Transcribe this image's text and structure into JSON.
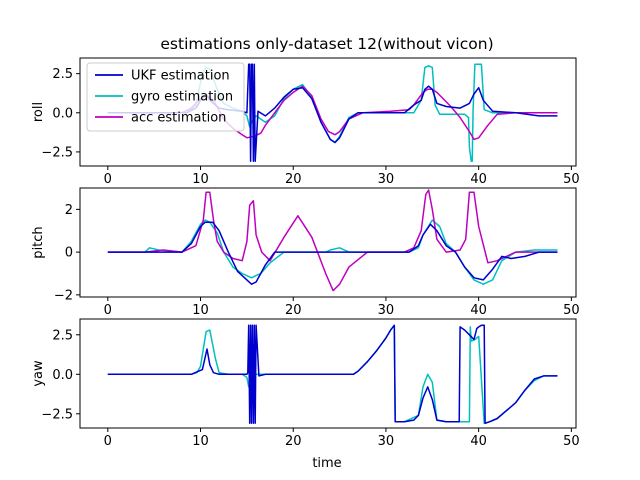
{
  "title": "estimations only-dataset 12(without vicon)",
  "xlabel": "time",
  "chart_data": {
    "type": "line",
    "title": "estimations only-dataset 12(without vicon)",
    "xlabel": "time",
    "legend": {
      "placement": "top-left",
      "entries": [
        "UKF estimation",
        "gyro estimation",
        "acc estimation"
      ]
    },
    "colors": {
      "UKF estimation": "#0000cc",
      "gyro estimation": "#00bfbf",
      "acc estimation": "#bf00bf"
    },
    "subplots": [
      {
        "ylabel": "roll",
        "xlim": [
          -3,
          50.5
        ],
        "ylim": [
          -3.4,
          3.5
        ],
        "xticks": [
          0,
          10,
          20,
          30,
          40,
          50
        ],
        "yticks": [
          -2.5,
          0.0,
          2.5
        ],
        "ytick_labels": [
          "−2.5",
          "0.0",
          "2.5"
        ],
        "series": [
          {
            "name": "gyro estimation",
            "x": [
              0,
              8.5,
              9.5,
              10.2,
              10.6,
              11.0,
              11.8,
              12.5,
              13.5,
              14.5,
              15.0,
              15.3,
              15.6,
              16.0,
              17.0,
              18.0,
              19.0,
              20.0,
              21.0,
              22.0,
              23.0,
              24.0,
              24.5,
              25.0,
              26.0,
              27.0,
              30.0,
              33.0,
              33.8,
              34.2,
              34.6,
              35.0,
              35.3,
              35.8,
              37.0,
              38.5,
              38.9,
              39.0,
              39.2,
              39.3,
              39.4,
              39.6,
              40.0,
              40.3,
              40.6,
              41.5,
              43.0,
              48.5
            ],
            "y": [
              0,
              0,
              0.5,
              2.5,
              2.9,
              2.8,
              1.5,
              0.6,
              0.3,
              0.1,
              -0.2,
              -0.9,
              -0.5,
              -0.2,
              -0.6,
              -0.2,
              0.9,
              1.5,
              1.8,
              1.0,
              -0.6,
              -1.7,
              -1.9,
              -1.5,
              -0.3,
              0,
              0,
              0,
              0.8,
              2.9,
              3.0,
              2.9,
              0.5,
              -0.1,
              -0.1,
              -0.1,
              -0.3,
              -2.2,
              -3.1,
              -3.1,
              0.2,
              3.1,
              3.1,
              3.1,
              0.2,
              0,
              0,
              0
            ]
          },
          {
            "name": "acc estimation",
            "x": [
              0,
              8.0,
              9.0,
              9.8,
              10.5,
              11.0,
              11.5,
              12.5,
              13.5,
              14.5,
              15.0,
              15.8,
              16.5,
              17.0,
              18.0,
              19.0,
              20.0,
              21.0,
              22.0,
              23.0,
              23.8,
              24.5,
              25.0,
              26.0,
              27.5,
              30.5,
              32.5,
              33.0,
              33.5,
              34.0,
              34.5,
              35.0,
              35.5,
              36.0,
              37.0,
              38.0,
              39.0,
              39.5,
              40.0,
              41.0,
              42.0,
              44.0,
              48.5
            ],
            "y": [
              0,
              0,
              0.3,
              0.8,
              1.1,
              1.0,
              0.7,
              -0.4,
              -1.0,
              -1.4,
              -1.6,
              -1.5,
              -1.3,
              -0.8,
              0,
              0.8,
              1.3,
              1.7,
              1.1,
              -0.4,
              -1.2,
              -1.4,
              -1.2,
              -0.4,
              0,
              0.1,
              0.2,
              0.5,
              0.9,
              1.3,
              1.5,
              1.5,
              1.3,
              1.0,
              0.4,
              -0.3,
              -1.2,
              -1.7,
              -1.6,
              -0.8,
              -0.1,
              0,
              0
            ]
          },
          {
            "name": "UKF estimation",
            "x": [
              0,
              8.5,
              9.5,
              10.2,
              10.6,
              11.0,
              12.0,
              13.0,
              14.5,
              15.0,
              15.2,
              15.3,
              15.4,
              15.5,
              15.6,
              15.7,
              15.8,
              15.9,
              16.2,
              17.0,
              18.0,
              19.0,
              20.0,
              21.0,
              22.0,
              23.0,
              24.0,
              24.5,
              25.0,
              26.0,
              27.0,
              30.0,
              32.0,
              33.0,
              33.8,
              34.2,
              34.6,
              35.0,
              35.5,
              36.5,
              38.0,
              39.0,
              39.5,
              40.0,
              40.5,
              41.5,
              44.0,
              46.5,
              48.5
            ],
            "y": [
              0,
              0,
              0.3,
              1.0,
              1.2,
              0.8,
              0.3,
              0.2,
              0.1,
              0,
              3.1,
              3.1,
              -3.1,
              3.1,
              3.1,
              -3.1,
              3.1,
              -3.1,
              0.1,
              -0.2,
              0.3,
              1.0,
              1.5,
              1.6,
              0.9,
              -0.6,
              -1.7,
              -1.9,
              -1.6,
              -0.4,
              0,
              0,
              0,
              0.5,
              0.8,
              1.5,
              1.7,
              1.5,
              0.6,
              0.4,
              0.3,
              0.6,
              1.2,
              1.6,
              0.8,
              0.1,
              0,
              -0.2,
              -0.2
            ]
          }
        ]
      },
      {
        "ylabel": "pitch",
        "xlim": [
          -3,
          50.5
        ],
        "ylim": [
          -2.1,
          3.0
        ],
        "xticks": [
          0,
          10,
          20,
          30,
          40,
          50
        ],
        "yticks": [
          -2,
          0,
          2
        ],
        "ytick_labels": [
          "−2",
          "0",
          "2"
        ],
        "series": [
          {
            "name": "gyro estimation",
            "x": [
              0,
              4.0,
              4.5,
              5.5,
              8.0,
              9.0,
              10.0,
              10.5,
              11.0,
              11.8,
              12.5,
              13.5,
              14.5,
              15.5,
              16.0,
              16.5,
              17.5,
              19.0,
              20.5,
              22.0,
              23.5,
              24.0,
              25.0,
              26.0,
              30.0,
              32.5,
              33.5,
              34.0,
              35.0,
              35.8,
              36.5,
              37.5,
              38.5,
              39.5,
              40.5,
              41.5,
              42.5,
              44.0,
              46.0,
              48.5
            ],
            "y": [
              0,
              0,
              0.2,
              0.1,
              0,
              0.5,
              1.3,
              1.5,
              1.4,
              0.9,
              0,
              -0.7,
              -1.0,
              -1.2,
              -1.1,
              -1.0,
              -0.5,
              0,
              0,
              0,
              0,
              0.1,
              0.2,
              0,
              0,
              0,
              0.2,
              0.8,
              1.5,
              1.2,
              0.4,
              0,
              -0.7,
              -1.3,
              -1.5,
              -1.3,
              -0.4,
              0,
              0.1,
              0.1
            ]
          },
          {
            "name": "acc estimation",
            "x": [
              0,
              4.0,
              6.0,
              8.0,
              9.5,
              10.3,
              10.6,
              11.0,
              11.4,
              11.8,
              12.5,
              13.5,
              14.5,
              15.0,
              15.3,
              15.7,
              16.0,
              16.6,
              17.5,
              19.0,
              20.5,
              22.0,
              23.5,
              24.3,
              25.0,
              26.0,
              28.0,
              30.0,
              32.0,
              33.0,
              33.8,
              34.3,
              34.6,
              35.0,
              35.5,
              36.5,
              38.0,
              38.6,
              39.0,
              39.5,
              40.0,
              41.0,
              42.0,
              44.0,
              48.5
            ],
            "y": [
              0,
              0,
              0.1,
              0,
              0.3,
              1.5,
              2.8,
              2.8,
              1.5,
              0.5,
              0,
              -0.3,
              -0.4,
              0.5,
              2.2,
              2.4,
              0.8,
              0,
              -0.4,
              0.7,
              1.7,
              0.7,
              -1.0,
              -1.8,
              -1.5,
              -0.7,
              0,
              0,
              0,
              0.2,
              1.0,
              2.7,
              2.9,
              2.0,
              0.6,
              0,
              0.1,
              0.6,
              2.8,
              2.8,
              1.2,
              -0.5,
              -0.4,
              0,
              0
            ]
          },
          {
            "name": "UKF estimation",
            "x": [
              0,
              8.0,
              9.0,
              10.0,
              10.5,
              11.3,
              12.0,
              13.0,
              14.0,
              15.0,
              15.5,
              16.0,
              17.0,
              18.0,
              20.0,
              22.0,
              24.0,
              26.0,
              30.0,
              32.5,
              33.5,
              34.0,
              34.8,
              35.5,
              36.5,
              37.5,
              38.5,
              39.5,
              40.5,
              41.5,
              42.5,
              43.5,
              45.0,
              46.5,
              48.5
            ],
            "y": [
              0,
              0,
              0.4,
              1.2,
              1.4,
              1.4,
              1.0,
              0,
              -0.9,
              -1.3,
              -1.5,
              -1.4,
              -0.6,
              0,
              0,
              0,
              0,
              0,
              0,
              0,
              0.3,
              0.8,
              1.3,
              1.0,
              0.3,
              0,
              -0.7,
              -1.2,
              -1.3,
              -0.8,
              -0.2,
              -0.3,
              -0.2,
              0,
              0
            ]
          }
        ]
      },
      {
        "ylabel": "yaw",
        "xlim": [
          -3,
          50.5
        ],
        "ylim": [
          -3.4,
          3.5
        ],
        "xticks": [
          0,
          10,
          20,
          30,
          40,
          50
        ],
        "yticks": [
          -2.5,
          0.0,
          2.5
        ],
        "ytick_labels": [
          "−2.5",
          "0.0",
          "2.5"
        ],
        "series": [
          {
            "name": "gyro estimation",
            "x": [
              0,
              9.0,
              9.6,
              10.0,
              10.6,
              11.0,
              11.6,
              12.0,
              13.0,
              14.5,
              15.0,
              15.2,
              15.5,
              16.0,
              17.0,
              20.0,
              24.0,
              26.5,
              27.0,
              28.0,
              29.0,
              30.0,
              30.5,
              30.9,
              31.0,
              32.0,
              33.5,
              34.0,
              34.5,
              35.0,
              35.5,
              36.5,
              38.5,
              39.0,
              39.1,
              39.2,
              39.6,
              40.0,
              40.6,
              41.2,
              42.0,
              43.0,
              44.0,
              45.0,
              46.0,
              47.0,
              48.5
            ],
            "y": [
              0,
              0,
              0.1,
              0.5,
              2.7,
              2.8,
              1.0,
              0.1,
              0,
              0,
              -0.2,
              -0.8,
              -0.5,
              0,
              0,
              0,
              0,
              0,
              0.2,
              0.8,
              1.5,
              2.3,
              2.8,
              3.1,
              -3.0,
              -3.0,
              -2.6,
              -0.8,
              0,
              -0.5,
              -2.9,
              -3.0,
              -3.0,
              -3.0,
              3.0,
              2.1,
              2.2,
              2.4,
              -3.1,
              -3.0,
              -2.8,
              -2.3,
              -1.8,
              -1.0,
              -0.4,
              -0.1,
              -0.1
            ]
          },
          {
            "name": "UKF estimation",
            "x": [
              0,
              9.0,
              10.2,
              10.7,
              11.0,
              11.4,
              12.0,
              13.5,
              14.5,
              15.0,
              15.1,
              15.2,
              15.3,
              15.4,
              15.5,
              15.6,
              15.7,
              15.8,
              15.9,
              16.0,
              16.3,
              17.0,
              20.0,
              24.0,
              26.5,
              27.0,
              28.0,
              29.0,
              30.0,
              30.5,
              30.9,
              31.0,
              32.0,
              33.0,
              33.5,
              34.0,
              34.5,
              35.0,
              35.5,
              36.5,
              37.5,
              37.9,
              38.0,
              38.5,
              39.0,
              39.5,
              39.8,
              40.0,
              40.3,
              40.6,
              40.7,
              41.2,
              42.0,
              43.0,
              44.0,
              45.0,
              46.0,
              47.0,
              48.5
            ],
            "y": [
              0,
              0,
              0.3,
              1.6,
              0.6,
              0.1,
              0,
              0,
              0,
              0,
              0.1,
              3.1,
              -3.1,
              3.1,
              -3.1,
              3.1,
              -3.1,
              3.1,
              -3.1,
              3.1,
              -0.1,
              0,
              0,
              0,
              0,
              0.2,
              0.8,
              1.5,
              2.3,
              2.8,
              3.1,
              -3.0,
              -3.0,
              -2.9,
              -2.6,
              -1.5,
              -0.8,
              -1.6,
              -2.9,
              -3.0,
              -3.0,
              -3.0,
              3.0,
              2.8,
              2.5,
              2.2,
              2.9,
              3.0,
              3.1,
              3.1,
              -3.1,
              -3.0,
              -2.8,
              -2.3,
              -1.8,
              -1.0,
              -0.3,
              -0.1,
              -0.1
            ]
          }
        ]
      }
    ]
  }
}
